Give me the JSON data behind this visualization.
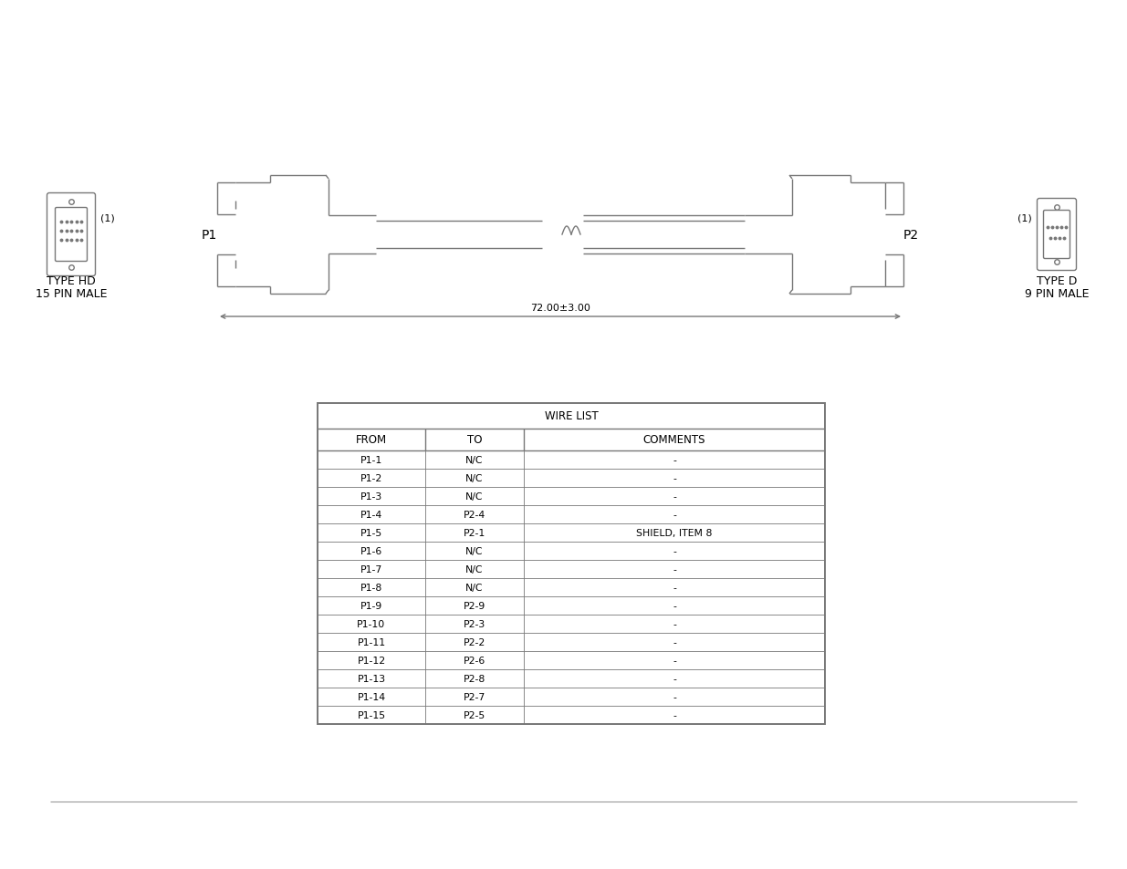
{
  "bg_color": "#ffffff",
  "line_color": "#777777",
  "table_title": "WIRE LIST",
  "col_headers": [
    "FROM",
    "TO",
    "COMMENTS"
  ],
  "wire_data": [
    [
      "P1-1",
      "N/C",
      "-"
    ],
    [
      "P1-2",
      "N/C",
      "-"
    ],
    [
      "P1-3",
      "N/C",
      "-"
    ],
    [
      "P1-4",
      "P2-4",
      "-"
    ],
    [
      "P1-5",
      "P2-1",
      "SHIELD, ITEM 8"
    ],
    [
      "P1-6",
      "N/C",
      "-"
    ],
    [
      "P1-7",
      "N/C",
      "-"
    ],
    [
      "P1-8",
      "N/C",
      "-"
    ],
    [
      "P1-9",
      "P2-9",
      "-"
    ],
    [
      "P1-10",
      "P2-3",
      "-"
    ],
    [
      "P1-11",
      "P2-2",
      "-"
    ],
    [
      "P1-12",
      "P2-6",
      "-"
    ],
    [
      "P1-13",
      "P2-8",
      "-"
    ],
    [
      "P1-14",
      "P2-7",
      "-"
    ],
    [
      "P1-15",
      "P2-5",
      "-"
    ]
  ],
  "dimension_text": "72.00±3.00",
  "p1_label": "P1",
  "p2_label": "P2",
  "connector1_label1": "TYPE HD",
  "connector1_label2": "15 PIN MALE",
  "connector2_label1": "TYPE D",
  "connector2_label2": "9 PIN MALE",
  "item_label": "(1)"
}
